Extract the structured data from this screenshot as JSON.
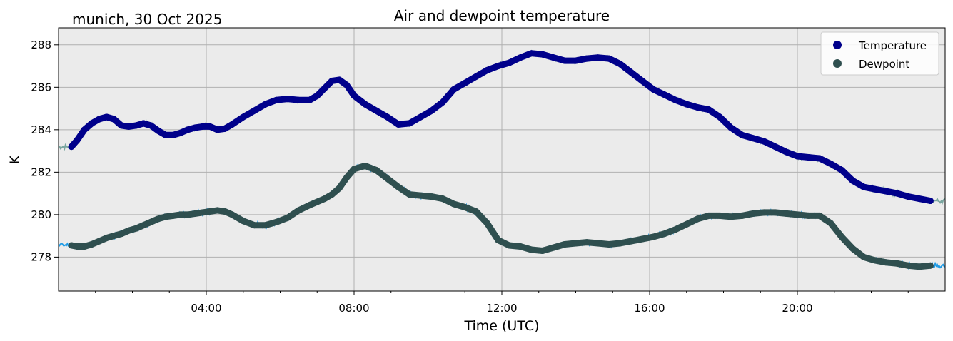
{
  "chart_data": {
    "type": "line",
    "title": "Air and dewpoint temperature",
    "subtitle": "munich, 30 Oct 2025",
    "xlabel": "Time (UTC)",
    "ylabel": "K",
    "xlim": [
      0,
      24
    ],
    "ylim": [
      276.4,
      288.8
    ],
    "x_ticks": [
      4,
      8,
      12,
      16,
      20
    ],
    "x_tick_labels": [
      "04:00",
      "08:00",
      "12:00",
      "16:00",
      "20:00"
    ],
    "y_ticks": [
      278,
      280,
      282,
      284,
      286,
      288
    ],
    "y_tick_labels": [
      "278",
      "280",
      "282",
      "284",
      "286",
      "288"
    ],
    "grid": true,
    "legend_position": "top-right",
    "background_color": "#ebebeb",
    "series": [
      {
        "name": "Temperature",
        "marker_color": "#00008b",
        "raw_color": "#7aa6a0",
        "x": [
          0.35,
          0.5,
          0.7,
          0.9,
          1.1,
          1.3,
          1.5,
          1.7,
          1.9,
          2.1,
          2.3,
          2.5,
          2.7,
          2.9,
          3.1,
          3.3,
          3.5,
          3.7,
          3.9,
          4.1,
          4.3,
          4.5,
          4.7,
          5.0,
          5.3,
          5.6,
          5.9,
          6.2,
          6.5,
          6.8,
          7.0,
          7.2,
          7.4,
          7.6,
          7.8,
          8.0,
          8.3,
          8.6,
          8.9,
          9.2,
          9.5,
          9.8,
          10.1,
          10.4,
          10.7,
          11.0,
          11.3,
          11.6,
          11.9,
          12.2,
          12.5,
          12.8,
          13.1,
          13.4,
          13.7,
          14.0,
          14.3,
          14.6,
          14.9,
          15.2,
          15.5,
          15.8,
          16.1,
          16.4,
          16.7,
          17.0,
          17.3,
          17.6,
          17.9,
          18.2,
          18.5,
          18.8,
          19.1,
          19.4,
          19.7,
          20.0,
          20.3,
          20.6,
          20.9,
          21.2,
          21.5,
          21.8,
          22.1,
          22.4,
          22.7,
          23.0,
          23.3,
          23.6
        ],
        "y": [
          283.2,
          283.5,
          284.0,
          284.3,
          284.5,
          284.6,
          284.5,
          284.2,
          284.15,
          284.2,
          284.3,
          284.2,
          283.95,
          283.75,
          283.75,
          283.85,
          284.0,
          284.1,
          284.15,
          284.15,
          284.0,
          284.05,
          284.25,
          284.6,
          284.9,
          285.2,
          285.4,
          285.45,
          285.4,
          285.4,
          285.6,
          285.95,
          286.3,
          286.35,
          286.1,
          285.6,
          285.2,
          284.9,
          284.6,
          284.25,
          284.3,
          284.6,
          284.9,
          285.3,
          285.9,
          286.2,
          286.5,
          286.8,
          287.0,
          287.15,
          287.4,
          287.6,
          287.55,
          287.4,
          287.25,
          287.25,
          287.35,
          287.4,
          287.35,
          287.1,
          286.7,
          286.3,
          285.9,
          285.65,
          285.4,
          285.2,
          285.05,
          284.95,
          284.6,
          284.1,
          283.75,
          283.6,
          283.45,
          283.2,
          282.95,
          282.75,
          282.7,
          282.65,
          282.4,
          282.1,
          281.6,
          281.3,
          281.2,
          281.1,
          281.0,
          280.85,
          280.75,
          280.65
        ]
      },
      {
        "name": "Dewpoint",
        "marker_color": "#2f4f4f",
        "raw_color": "#1e9be6",
        "x": [
          0.35,
          0.5,
          0.7,
          0.9,
          1.1,
          1.3,
          1.5,
          1.7,
          1.9,
          2.1,
          2.3,
          2.5,
          2.7,
          2.9,
          3.1,
          3.3,
          3.5,
          3.7,
          3.9,
          4.1,
          4.3,
          4.5,
          4.7,
          5.0,
          5.3,
          5.6,
          5.9,
          6.2,
          6.5,
          6.8,
          7.0,
          7.2,
          7.4,
          7.6,
          7.8,
          8.0,
          8.3,
          8.6,
          8.9,
          9.2,
          9.5,
          9.8,
          10.1,
          10.4,
          10.7,
          11.0,
          11.3,
          11.6,
          11.9,
          12.2,
          12.5,
          12.8,
          13.1,
          13.4,
          13.7,
          14.0,
          14.3,
          14.6,
          14.9,
          15.2,
          15.5,
          15.8,
          16.1,
          16.4,
          16.7,
          17.0,
          17.3,
          17.6,
          17.9,
          18.2,
          18.5,
          18.8,
          19.1,
          19.4,
          19.7,
          20.0,
          20.3,
          20.6,
          20.9,
          21.2,
          21.5,
          21.8,
          22.1,
          22.4,
          22.7,
          23.0,
          23.3,
          23.6
        ],
        "y": [
          278.55,
          278.5,
          278.5,
          278.6,
          278.75,
          278.9,
          279.0,
          279.1,
          279.25,
          279.35,
          279.5,
          279.65,
          279.8,
          279.9,
          279.95,
          280.0,
          280.0,
          280.05,
          280.1,
          280.15,
          280.2,
          280.15,
          280.0,
          279.7,
          279.5,
          279.5,
          279.65,
          279.85,
          280.2,
          280.45,
          280.6,
          280.75,
          280.95,
          281.25,
          281.75,
          282.15,
          282.3,
          282.1,
          281.7,
          281.3,
          280.95,
          280.9,
          280.85,
          280.75,
          280.5,
          280.35,
          280.15,
          279.6,
          278.8,
          278.55,
          278.5,
          278.35,
          278.3,
          278.45,
          278.6,
          278.65,
          278.7,
          278.65,
          278.6,
          278.65,
          278.75,
          278.85,
          278.95,
          279.1,
          279.3,
          279.55,
          279.8,
          279.95,
          279.95,
          279.9,
          279.95,
          280.05,
          280.1,
          280.1,
          280.05,
          280.0,
          279.95,
          279.95,
          279.6,
          278.95,
          278.4,
          278.0,
          277.85,
          277.75,
          277.7,
          277.6,
          277.55,
          277.6
        ]
      }
    ]
  }
}
